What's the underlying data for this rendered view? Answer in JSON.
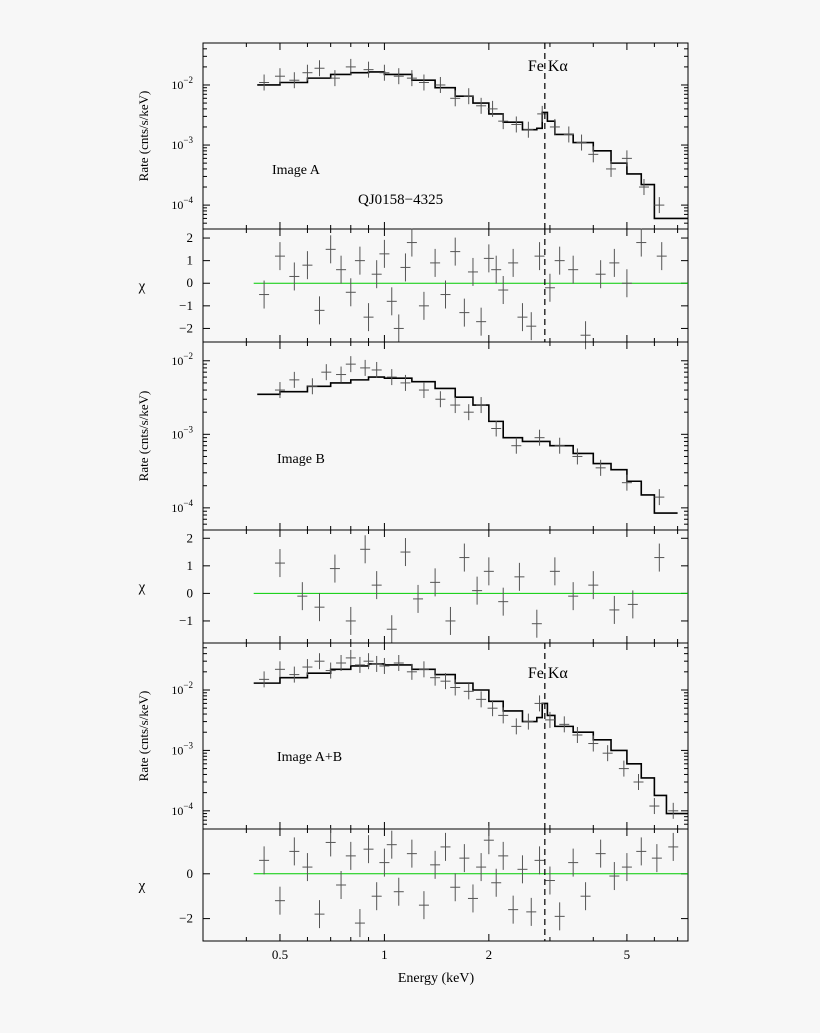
{
  "figure": {
    "xlabel": "Energy (keV)",
    "ylabel_rate": "Rate (cnts/s/keV)",
    "ylabel_resid": "χ",
    "line_label": "Fe Kα",
    "source_name": "QJ0158−4325",
    "colors": {
      "model": "#000000",
      "data": "#555555",
      "zero_line": "#00cc00",
      "marker": "#000000"
    }
  },
  "chart_data": [
    {
      "type": "line",
      "panel": "rate",
      "label": "Image A",
      "title": "QJ0158−4325",
      "xscale": "log",
      "yscale": "log",
      "xlim": [
        0.3,
        7.5
      ],
      "ylim": [
        4e-05,
        0.05
      ],
      "x_ticks": [
        0.5,
        1,
        2,
        5
      ],
      "x_tick_labels": [
        "0.5",
        "1",
        "2",
        "5"
      ],
      "y_ticks": [
        0.0001,
        0.001,
        0.01
      ],
      "y_tick_labels": [
        "10−4",
        "10−3",
        "10−2"
      ],
      "fe_line_keV": 2.9,
      "fe_label": "Fe Kα",
      "model": {
        "x": [
          0.43,
          0.5,
          0.6,
          0.7,
          0.8,
          0.9,
          1.0,
          1.2,
          1.4,
          1.6,
          1.8,
          2.0,
          2.2,
          2.5,
          2.75,
          2.85,
          2.95,
          3.1,
          3.5,
          4.0,
          4.5,
          5.0,
          5.5,
          6.0,
          7.5
        ],
        "y": [
          0.01,
          0.011,
          0.013,
          0.015,
          0.016,
          0.0165,
          0.015,
          0.012,
          0.009,
          0.0065,
          0.005,
          0.0033,
          0.0024,
          0.0018,
          0.0019,
          0.0035,
          0.0025,
          0.0015,
          0.0011,
          0.0008,
          0.0005,
          0.00033,
          0.00022,
          6e-05,
          6e-05
        ]
      },
      "data": {
        "x": [
          0.45,
          0.5,
          0.55,
          0.6,
          0.65,
          0.72,
          0.8,
          0.9,
          1.0,
          1.1,
          1.2,
          1.3,
          1.45,
          1.6,
          1.75,
          1.9,
          2.05,
          2.2,
          2.4,
          2.6,
          2.85,
          3.1,
          3.4,
          3.7,
          4.0,
          4.5,
          5.0,
          5.6,
          6.2
        ],
        "y": [
          0.011,
          0.014,
          0.012,
          0.016,
          0.019,
          0.013,
          0.02,
          0.018,
          0.016,
          0.014,
          0.013,
          0.011,
          0.01,
          0.006,
          0.0065,
          0.0045,
          0.004,
          0.0025,
          0.0022,
          0.0018,
          0.0033,
          0.002,
          0.0015,
          0.0011,
          0.0007,
          0.0004,
          0.0006,
          0.0002,
          0.0001
        ]
      }
    },
    {
      "type": "scatter",
      "panel": "residual",
      "label": "Image A residuals",
      "xscale": "log",
      "xlim": [
        0.3,
        7.5
      ],
      "ylim": [
        -2.6,
        2.4
      ],
      "y_ticks": [
        -2,
        -1,
        0,
        1,
        2
      ],
      "y_tick_labels": [
        "−2",
        "−1",
        "0",
        "1",
        "2"
      ],
      "x": [
        0.45,
        0.5,
        0.55,
        0.6,
        0.65,
        0.7,
        0.75,
        0.8,
        0.85,
        0.9,
        0.95,
        1.0,
        1.05,
        1.1,
        1.15,
        1.2,
        1.3,
        1.4,
        1.5,
        1.6,
        1.7,
        1.8,
        1.9,
        2.0,
        2.1,
        2.2,
        2.35,
        2.5,
        2.65,
        2.8,
        3.0,
        3.2,
        3.5,
        3.8,
        4.2,
        4.6,
        5.0,
        5.5,
        6.3
      ],
      "y": [
        -0.5,
        1.2,
        0.3,
        0.8,
        -1.2,
        1.5,
        0.6,
        -0.4,
        1.0,
        -1.5,
        0.4,
        1.3,
        -0.8,
        -2.0,
        0.7,
        1.8,
        -1.0,
        0.9,
        -0.5,
        1.4,
        -1.3,
        0.5,
        -1.7,
        1.1,
        0.6,
        -0.3,
        0.9,
        -1.5,
        -1.9,
        1.2,
        -0.2,
        1.0,
        0.6,
        -2.3,
        0.4,
        0.9,
        0.0,
        1.8,
        1.2
      ]
    },
    {
      "type": "line",
      "panel": "rate",
      "label": "Image B",
      "xscale": "log",
      "yscale": "log",
      "xlim": [
        0.3,
        7.5
      ],
      "ylim": [
        5e-05,
        0.018
      ],
      "y_ticks": [
        0.0001,
        0.001,
        0.01
      ],
      "y_tick_labels": [
        "10−4",
        "10−3",
        "10−2"
      ],
      "model": {
        "x": [
          0.43,
          0.5,
          0.6,
          0.7,
          0.8,
          0.9,
          1.0,
          1.2,
          1.4,
          1.6,
          1.8,
          2.0,
          2.2,
          2.5,
          3.0,
          3.5,
          4.0,
          4.5,
          5.0,
          5.5,
          6.0,
          7.0
        ],
        "y": [
          0.0035,
          0.0038,
          0.0045,
          0.005,
          0.0055,
          0.006,
          0.0058,
          0.0052,
          0.0042,
          0.0032,
          0.0025,
          0.0015,
          0.0009,
          0.0008,
          0.0007,
          0.00055,
          0.0004,
          0.00033,
          0.00023,
          0.00015,
          8.5e-05,
          8.5e-05
        ]
      },
      "data": {
        "x": [
          0.5,
          0.55,
          0.62,
          0.68,
          0.75,
          0.8,
          0.88,
          0.95,
          1.05,
          1.15,
          1.3,
          1.45,
          1.6,
          1.75,
          1.9,
          2.1,
          2.4,
          2.8,
          3.2,
          3.6,
          4.2,
          5.0,
          6.2
        ],
        "y": [
          0.004,
          0.0055,
          0.0045,
          0.007,
          0.0065,
          0.009,
          0.008,
          0.0075,
          0.006,
          0.005,
          0.004,
          0.003,
          0.0025,
          0.002,
          0.0025,
          0.0012,
          0.0007,
          0.0009,
          0.0007,
          0.0005,
          0.00035,
          0.00022,
          0.00014
        ]
      }
    },
    {
      "type": "scatter",
      "panel": "residual",
      "label": "Image B residuals",
      "xscale": "log",
      "xlim": [
        0.3,
        7.5
      ],
      "ylim": [
        -1.8,
        2.3
      ],
      "y_ticks": [
        -1,
        0,
        1,
        2
      ],
      "y_tick_labels": [
        "−1",
        "0",
        "1",
        "2"
      ],
      "x": [
        0.5,
        0.58,
        0.65,
        0.72,
        0.8,
        0.88,
        0.95,
        1.05,
        1.15,
        1.25,
        1.4,
        1.55,
        1.7,
        1.85,
        2.0,
        2.2,
        2.45,
        2.75,
        3.1,
        3.5,
        4.0,
        4.6,
        5.2,
        6.2
      ],
      "y": [
        1.1,
        -0.1,
        -0.5,
        0.9,
        -1.0,
        1.6,
        0.3,
        -1.3,
        1.5,
        -0.2,
        0.4,
        -1.0,
        1.3,
        0.1,
        0.8,
        -0.3,
        0.6,
        -1.1,
        0.8,
        -0.1,
        0.3,
        -0.6,
        -0.4,
        1.3
      ]
    },
    {
      "type": "line",
      "panel": "rate",
      "label": "Image A+B",
      "xscale": "log",
      "yscale": "log",
      "xlim": [
        0.3,
        7.5
      ],
      "ylim": [
        5e-05,
        0.06
      ],
      "y_ticks": [
        0.0001,
        0.001,
        0.01
      ],
      "y_tick_labels": [
        "10−4",
        "10−3",
        "10−2"
      ],
      "fe_line_keV": 2.9,
      "fe_label": "Fe Kα",
      "model": {
        "x": [
          0.42,
          0.5,
          0.6,
          0.7,
          0.8,
          0.9,
          1.0,
          1.2,
          1.4,
          1.6,
          1.8,
          2.0,
          2.2,
          2.5,
          2.75,
          2.85,
          2.95,
          3.1,
          3.5,
          4.0,
          4.5,
          5.0,
          5.5,
          6.0,
          6.5,
          7.5
        ],
        "y": [
          0.013,
          0.016,
          0.019,
          0.022,
          0.025,
          0.027,
          0.026,
          0.022,
          0.018,
          0.013,
          0.01,
          0.0065,
          0.0045,
          0.003,
          0.0035,
          0.006,
          0.0038,
          0.0025,
          0.002,
          0.0015,
          0.001,
          0.0006,
          0.00035,
          0.00018,
          9e-05,
          9e-05
        ]
      },
      "data": {
        "x": [
          0.45,
          0.5,
          0.55,
          0.6,
          0.65,
          0.7,
          0.75,
          0.8,
          0.85,
          0.9,
          0.95,
          1.0,
          1.1,
          1.2,
          1.3,
          1.4,
          1.5,
          1.6,
          1.75,
          1.9,
          2.05,
          2.2,
          2.4,
          2.6,
          2.8,
          3.0,
          3.3,
          3.6,
          4.0,
          4.4,
          4.9,
          5.4,
          6.0,
          6.8
        ],
        "y": [
          0.015,
          0.022,
          0.018,
          0.024,
          0.03,
          0.021,
          0.028,
          0.034,
          0.026,
          0.03,
          0.027,
          0.025,
          0.028,
          0.02,
          0.022,
          0.016,
          0.014,
          0.011,
          0.0095,
          0.007,
          0.005,
          0.0038,
          0.0025,
          0.003,
          0.006,
          0.0032,
          0.0027,
          0.0018,
          0.0013,
          0.0009,
          0.0005,
          0.0003,
          0.00012,
          0.0001
        ]
      }
    },
    {
      "type": "scatter",
      "panel": "residual",
      "label": "Image A+B residuals",
      "xscale": "log",
      "xlim": [
        0.3,
        7.5
      ],
      "ylim": [
        -3.0,
        2.0
      ],
      "y_ticks": [
        -2,
        0
      ],
      "y_tick_labels": [
        "−2",
        "0"
      ],
      "x": [
        0.45,
        0.5,
        0.55,
        0.6,
        0.65,
        0.7,
        0.75,
        0.8,
        0.85,
        0.9,
        0.95,
        1.0,
        1.05,
        1.1,
        1.2,
        1.3,
        1.4,
        1.5,
        1.6,
        1.7,
        1.8,
        1.9,
        2.0,
        2.1,
        2.2,
        2.35,
        2.5,
        2.65,
        2.8,
        3.0,
        3.2,
        3.5,
        3.8,
        4.2,
        4.6,
        5.0,
        5.5,
        6.1,
        6.8
      ],
      "y": [
        0.6,
        -1.2,
        1.0,
        0.3,
        -1.8,
        1.4,
        -0.5,
        0.8,
        -2.2,
        1.1,
        -1.0,
        0.5,
        1.3,
        -0.8,
        0.9,
        -1.4,
        0.4,
        1.2,
        -0.6,
        0.7,
        -1.1,
        0.3,
        1.5,
        -0.4,
        0.8,
        -1.6,
        0.2,
        -1.7,
        0.6,
        -0.3,
        -1.9,
        0.5,
        -1.0,
        0.9,
        -0.1,
        0.3,
        1.0,
        0.7,
        1.2
      ]
    }
  ]
}
